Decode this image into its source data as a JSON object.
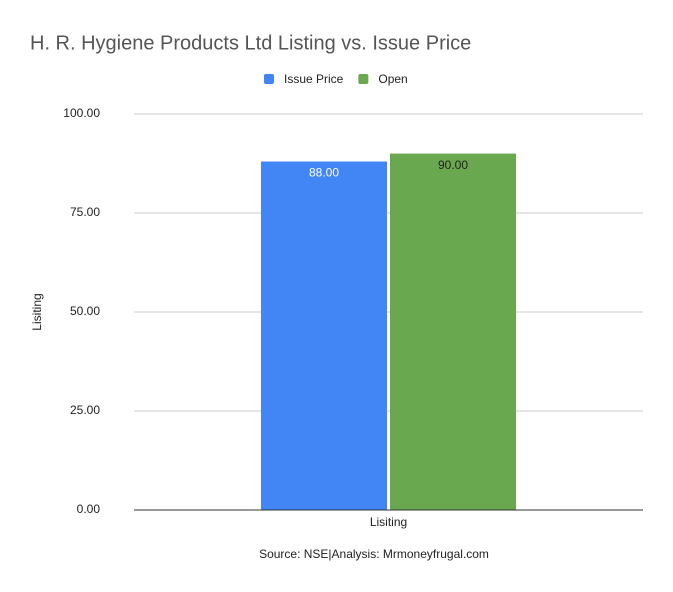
{
  "chart_data": {
    "type": "bar",
    "title": "H. R. Hygiene Products Ltd Listing vs. Issue Price",
    "categories": [
      "Lisiting"
    ],
    "series": [
      {
        "name": "Issue Price",
        "color": "#4285f4",
        "values": [
          88
        ],
        "value_labels": [
          "88.00"
        ]
      },
      {
        "name": "Open",
        "color": "#6aa84f",
        "values": [
          90
        ],
        "value_labels": [
          "90.00"
        ]
      }
    ],
    "y_label": "Lisiting",
    "x_label": "Lisiting",
    "source": "Source: NSE|Analysis: Mrmoneyfrugal.com",
    "ylim": [
      0,
      100
    ],
    "yticks": [
      {
        "value": 0,
        "label": "0.00"
      },
      {
        "value": 25,
        "label": "25.00"
      },
      {
        "value": 50,
        "label": "50.00"
      },
      {
        "value": 75,
        "label": "75.00"
      },
      {
        "value": 100,
        "label": "100.00"
      }
    ],
    "grid": true,
    "legend": "top"
  }
}
